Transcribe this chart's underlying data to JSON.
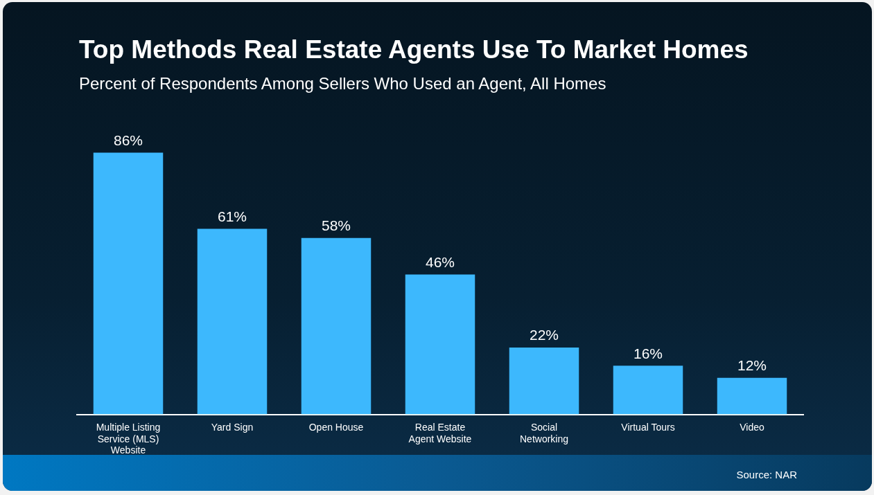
{
  "chart_data": {
    "type": "bar",
    "title": "Top Methods Real Estate Agents Use To Market Homes",
    "subtitle": "Percent of Respondents Among Sellers Who Used an Agent, All Homes",
    "categories": [
      "Multiple Listing Service (MLS) Website",
      "Yard Sign",
      "Open House",
      "Real Estate Agent Website",
      "Social Networking",
      "Virtual Tours",
      "Video"
    ],
    "values": [
      86,
      61,
      58,
      46,
      22,
      16,
      12
    ],
    "value_labels": [
      "86%",
      "61%",
      "58%",
      "46%",
      "22%",
      "16%",
      "12%"
    ],
    "color": "#3db8fd",
    "annotations": [
      "Source: NAR"
    ]
  }
}
